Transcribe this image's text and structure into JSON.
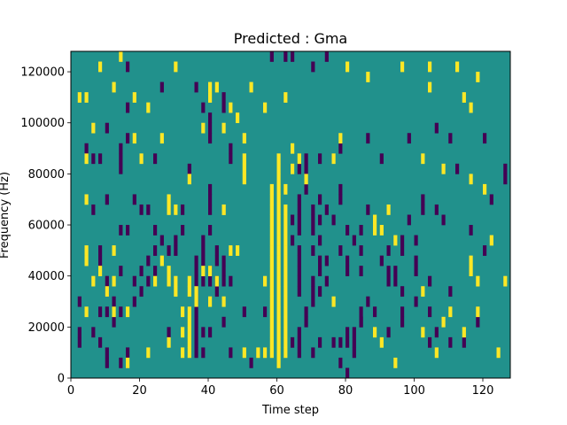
{
  "chart_data": {
    "type": "heatmap",
    "title": "Predicted : Gma",
    "xlabel": "Time step",
    "ylabel": "Frequency (Hz)",
    "xlim": [
      0,
      128
    ],
    "ylim": [
      0,
      128000
    ],
    "xticks": [
      0,
      20,
      40,
      60,
      80,
      100,
      120
    ],
    "yticks": [
      0,
      20000,
      40000,
      60000,
      80000,
      100000,
      120000
    ],
    "xtick_labels": [
      "0",
      "20",
      "40",
      "60",
      "80",
      "100",
      "120"
    ],
    "ytick_labels": [
      "0",
      "20000",
      "40000",
      "60000",
      "80000",
      "100000",
      "120000"
    ],
    "grid": false,
    "colormap": "viridis",
    "colors": {
      "background": "#21918c",
      "low": "#440154",
      "high": "#fde725",
      "axis": "#000000"
    },
    "cell_height_hz": 4000,
    "background_value": 0,
    "high_cells": [
      [
        8,
        120000
      ],
      [
        12,
        112000
      ],
      [
        14,
        124000
      ],
      [
        2,
        108000
      ],
      [
        4,
        108000
      ],
      [
        18,
        108000
      ],
      [
        22,
        104000
      ],
      [
        30,
        120000
      ],
      [
        40,
        112000
      ],
      [
        40,
        108000
      ],
      [
        42,
        112000
      ],
      [
        46,
        104000
      ],
      [
        38,
        96000
      ],
      [
        48,
        100000
      ],
      [
        52,
        112000
      ],
      [
        56,
        104000
      ],
      [
        62,
        108000
      ],
      [
        96,
        120000
      ],
      [
        80,
        120000
      ],
      [
        86,
        116000
      ],
      [
        104,
        112000
      ],
      [
        104,
        120000
      ],
      [
        112,
        120000
      ],
      [
        114,
        108000
      ],
      [
        116,
        104000
      ],
      [
        118,
        116000
      ],
      [
        18,
        92000
      ],
      [
        26,
        92000
      ],
      [
        6,
        96000
      ],
      [
        44,
        96000
      ],
      [
        50,
        92000
      ],
      [
        64,
        88000
      ],
      [
        78,
        92000
      ],
      [
        76,
        84000
      ],
      [
        4,
        84000
      ],
      [
        20,
        84000
      ],
      [
        60,
        84000
      ],
      [
        60,
        80000
      ],
      [
        64,
        80000
      ],
      [
        66,
        84000
      ],
      [
        102,
        84000
      ],
      [
        108,
        80000
      ],
      [
        50,
        84000
      ],
      [
        50,
        80000
      ],
      [
        50,
        76000
      ],
      [
        34,
        76000
      ],
      [
        60,
        76000
      ],
      [
        60,
        72000
      ],
      [
        62,
        72000
      ],
      [
        68,
        76000
      ],
      [
        116,
        76000
      ],
      [
        120,
        72000
      ],
      [
        4,
        68000
      ],
      [
        28,
        68000
      ],
      [
        28,
        64000
      ],
      [
        30,
        64000
      ],
      [
        58,
        72000
      ],
      [
        58,
        68000
      ],
      [
        58,
        64000
      ],
      [
        60,
        68000
      ],
      [
        60,
        64000
      ],
      [
        62,
        64000
      ],
      [
        44,
        64000
      ],
      [
        92,
        64000
      ],
      [
        88,
        60000
      ],
      [
        88,
        56000
      ],
      [
        90,
        56000
      ],
      [
        122,
        52000
      ],
      [
        58,
        60000
      ],
      [
        58,
        56000
      ],
      [
        58,
        52000
      ],
      [
        60,
        60000
      ],
      [
        60,
        56000
      ],
      [
        60,
        52000
      ],
      [
        62,
        60000
      ],
      [
        62,
        56000
      ],
      [
        62,
        52000
      ],
      [
        58,
        48000
      ],
      [
        58,
        44000
      ],
      [
        58,
        40000
      ],
      [
        58,
        36000
      ],
      [
        58,
        32000
      ],
      [
        58,
        28000
      ],
      [
        58,
        24000
      ],
      [
        58,
        20000
      ],
      [
        58,
        16000
      ],
      [
        58,
        12000
      ],
      [
        58,
        8000
      ],
      [
        60,
        48000
      ],
      [
        60,
        44000
      ],
      [
        60,
        40000
      ],
      [
        60,
        36000
      ],
      [
        60,
        32000
      ],
      [
        60,
        28000
      ],
      [
        60,
        24000
      ],
      [
        60,
        20000
      ],
      [
        60,
        16000
      ],
      [
        60,
        12000
      ],
      [
        60,
        8000
      ],
      [
        60,
        4000
      ],
      [
        62,
        48000
      ],
      [
        62,
        44000
      ],
      [
        62,
        40000
      ],
      [
        62,
        36000
      ],
      [
        62,
        32000
      ],
      [
        62,
        28000
      ],
      [
        62,
        24000
      ],
      [
        62,
        20000
      ],
      [
        62,
        16000
      ],
      [
        62,
        12000
      ],
      [
        62,
        8000
      ],
      [
        56,
        8000
      ],
      [
        56,
        36000
      ],
      [
        4,
        48000
      ],
      [
        4,
        44000
      ],
      [
        12,
        48000
      ],
      [
        26,
        44000
      ],
      [
        28,
        40000
      ],
      [
        28,
        36000
      ],
      [
        30,
        36000
      ],
      [
        30,
        32000
      ],
      [
        34,
        36000
      ],
      [
        34,
        32000
      ],
      [
        32,
        24000
      ],
      [
        32,
        16000
      ],
      [
        32,
        8000
      ],
      [
        34,
        16000
      ],
      [
        34,
        12000
      ],
      [
        34,
        8000
      ],
      [
        34,
        20000
      ],
      [
        34,
        24000
      ],
      [
        36,
        32000
      ],
      [
        16,
        24000
      ],
      [
        4,
        24000
      ],
      [
        12,
        24000
      ],
      [
        46,
        48000
      ],
      [
        48,
        48000
      ],
      [
        42,
        36000
      ],
      [
        40,
        40000
      ],
      [
        36,
        28000
      ],
      [
        44,
        28000
      ],
      [
        38,
        40000
      ],
      [
        40,
        28000
      ],
      [
        10,
        32000
      ],
      [
        12,
        36000
      ],
      [
        6,
        36000
      ],
      [
        8,
        40000
      ],
      [
        24,
        36000
      ],
      [
        16,
        4000
      ],
      [
        22,
        8000
      ],
      [
        28,
        12000
      ],
      [
        50,
        8000
      ],
      [
        54,
        8000
      ],
      [
        76,
        28000
      ],
      [
        88,
        16000
      ],
      [
        102,
        16000
      ],
      [
        114,
        16000
      ],
      [
        118,
        24000
      ],
      [
        126,
        36000
      ],
      [
        118,
        36000
      ],
      [
        116,
        44000
      ],
      [
        116,
        40000
      ],
      [
        124,
        8000
      ],
      [
        106,
        8000
      ],
      [
        108,
        20000
      ],
      [
        102,
        32000
      ],
      [
        110,
        24000
      ],
      [
        94,
        52000
      ],
      [
        94,
        4000
      ],
      [
        90,
        12000
      ],
      [
        44,
        64000
      ]
    ],
    "low_cells": [
      [
        62,
        124000
      ],
      [
        64,
        124000
      ],
      [
        74,
        124000
      ],
      [
        70,
        120000
      ],
      [
        58,
        124000
      ],
      [
        16,
        120000
      ],
      [
        26,
        112000
      ],
      [
        36,
        112000
      ],
      [
        44,
        108000
      ],
      [
        38,
        104000
      ],
      [
        44,
        104000
      ],
      [
        40,
        100000
      ],
      [
        40,
        96000
      ],
      [
        40,
        92000
      ],
      [
        16,
        104000
      ],
      [
        10,
        96000
      ],
      [
        16,
        92000
      ],
      [
        14,
        88000
      ],
      [
        4,
        88000
      ],
      [
        6,
        84000
      ],
      [
        8,
        84000
      ],
      [
        14,
        84000
      ],
      [
        14,
        80000
      ],
      [
        24,
        84000
      ],
      [
        34,
        80000
      ],
      [
        46,
        88000
      ],
      [
        46,
        84000
      ],
      [
        66,
        80000
      ],
      [
        68,
        80000
      ],
      [
        68,
        84000
      ],
      [
        72,
        84000
      ],
      [
        78,
        88000
      ],
      [
        86,
        92000
      ],
      [
        90,
        84000
      ],
      [
        98,
        92000
      ],
      [
        106,
        96000
      ],
      [
        110,
        92000
      ],
      [
        120,
        92000
      ],
      [
        126,
        80000
      ],
      [
        126,
        76000
      ],
      [
        112,
        80000
      ],
      [
        122,
        68000
      ],
      [
        102,
        68000
      ],
      [
        108,
        60000
      ],
      [
        98,
        60000
      ],
      [
        96,
        52000
      ],
      [
        100,
        52000
      ],
      [
        86,
        64000
      ],
      [
        84,
        56000
      ],
      [
        84,
        48000
      ],
      [
        80,
        56000
      ],
      [
        82,
        52000
      ],
      [
        78,
        72000
      ],
      [
        78,
        68000
      ],
      [
        72,
        68000
      ],
      [
        70,
        64000
      ],
      [
        68,
        72000
      ],
      [
        66,
        68000
      ],
      [
        66,
        64000
      ],
      [
        66,
        60000
      ],
      [
        66,
        56000
      ],
      [
        64,
        60000
      ],
      [
        64,
        52000
      ],
      [
        70,
        56000
      ],
      [
        70,
        60000
      ],
      [
        72,
        60000
      ],
      [
        74,
        64000
      ],
      [
        76,
        60000
      ],
      [
        84,
        40000
      ],
      [
        80,
        40000
      ],
      [
        80,
        44000
      ],
      [
        78,
        48000
      ],
      [
        74,
        44000
      ],
      [
        72,
        40000
      ],
      [
        74,
        36000
      ],
      [
        70,
        36000
      ],
      [
        70,
        32000
      ],
      [
        72,
        32000
      ],
      [
        70,
        28000
      ],
      [
        66,
        32000
      ],
      [
        66,
        36000
      ],
      [
        66,
        40000
      ],
      [
        66,
        44000
      ],
      [
        66,
        48000
      ],
      [
        70,
        48000
      ],
      [
        72,
        44000
      ],
      [
        72,
        52000
      ],
      [
        68,
        24000
      ],
      [
        68,
        20000
      ],
      [
        66,
        16000
      ],
      [
        66,
        12000
      ],
      [
        66,
        8000
      ],
      [
        70,
        8000
      ],
      [
        72,
        12000
      ],
      [
        76,
        12000
      ],
      [
        78,
        4000
      ],
      [
        80,
        0
      ],
      [
        82,
        16000
      ],
      [
        82,
        12000
      ],
      [
        84,
        20000
      ],
      [
        86,
        28000
      ],
      [
        92,
        16000
      ],
      [
        96,
        24000
      ],
      [
        100,
        28000
      ],
      [
        104,
        24000
      ],
      [
        106,
        16000
      ],
      [
        110,
        32000
      ],
      [
        110,
        12000
      ],
      [
        114,
        12000
      ],
      [
        118,
        20000
      ],
      [
        96,
        32000
      ],
      [
        92,
        36000
      ],
      [
        94,
        36000
      ],
      [
        92,
        40000
      ],
      [
        100,
        44000
      ],
      [
        104,
        36000
      ],
      [
        104,
        12000
      ],
      [
        96,
        20000
      ],
      [
        102,
        64000
      ],
      [
        106,
        64000
      ],
      [
        96,
        48000
      ],
      [
        94,
        40000
      ],
      [
        88,
        24000
      ],
      [
        84,
        24000
      ],
      [
        84,
        20000
      ],
      [
        80,
        16000
      ],
      [
        80,
        12000
      ],
      [
        82,
        8000
      ],
      [
        78,
        12000
      ],
      [
        40,
        72000
      ],
      [
        40,
        68000
      ],
      [
        40,
        64000
      ],
      [
        40,
        56000
      ],
      [
        38,
        52000
      ],
      [
        38,
        48000
      ],
      [
        42,
        48000
      ],
      [
        38,
        44000
      ],
      [
        36,
        44000
      ],
      [
        36,
        40000
      ],
      [
        36,
        36000
      ],
      [
        36,
        32000
      ],
      [
        36,
        28000
      ],
      [
        36,
        24000
      ],
      [
        36,
        20000
      ],
      [
        36,
        16000
      ],
      [
        36,
        12000
      ],
      [
        36,
        8000
      ],
      [
        38,
        8000
      ],
      [
        38,
        16000
      ],
      [
        40,
        16000
      ],
      [
        40,
        40000
      ],
      [
        38,
        36000
      ],
      [
        40,
        36000
      ],
      [
        42,
        36000
      ],
      [
        44,
        40000
      ],
      [
        44,
        36000
      ],
      [
        42,
        32000
      ],
      [
        42,
        44000
      ],
      [
        44,
        44000
      ],
      [
        46,
        36000
      ],
      [
        30,
        48000
      ],
      [
        28,
        48000
      ],
      [
        32,
        56000
      ],
      [
        32,
        64000
      ],
      [
        30,
        52000
      ],
      [
        26,
        52000
      ],
      [
        24,
        48000
      ],
      [
        20,
        32000
      ],
      [
        18,
        28000
      ],
      [
        14,
        24000
      ],
      [
        10,
        24000
      ],
      [
        8,
        24000
      ],
      [
        12,
        20000
      ],
      [
        12,
        28000
      ],
      [
        14,
        40000
      ],
      [
        8,
        44000
      ],
      [
        8,
        48000
      ],
      [
        10,
        36000
      ],
      [
        10,
        32000
      ],
      [
        18,
        36000
      ],
      [
        20,
        40000
      ],
      [
        22,
        44000
      ],
      [
        22,
        36000
      ],
      [
        24,
        40000
      ],
      [
        22,
        64000
      ],
      [
        24,
        56000
      ],
      [
        20,
        64000
      ],
      [
        18,
        68000
      ],
      [
        16,
        56000
      ],
      [
        14,
        56000
      ],
      [
        10,
        68000
      ],
      [
        6,
        64000
      ],
      [
        2,
        12000
      ],
      [
        2,
        16000
      ],
      [
        6,
        16000
      ],
      [
        8,
        12000
      ],
      [
        10,
        4000
      ],
      [
        10,
        8000
      ],
      [
        14,
        4000
      ],
      [
        16,
        8000
      ],
      [
        28,
        16000
      ],
      [
        44,
        20000
      ],
      [
        50,
        24000
      ],
      [
        56,
        24000
      ],
      [
        64,
        12000
      ],
      [
        46,
        8000
      ],
      [
        52,
        4000
      ],
      [
        2,
        28000
      ],
      [
        90,
        44000
      ],
      [
        92,
        48000
      ],
      [
        116,
        56000
      ],
      [
        120,
        48000
      ],
      [
        100,
        40000
      ]
    ]
  }
}
